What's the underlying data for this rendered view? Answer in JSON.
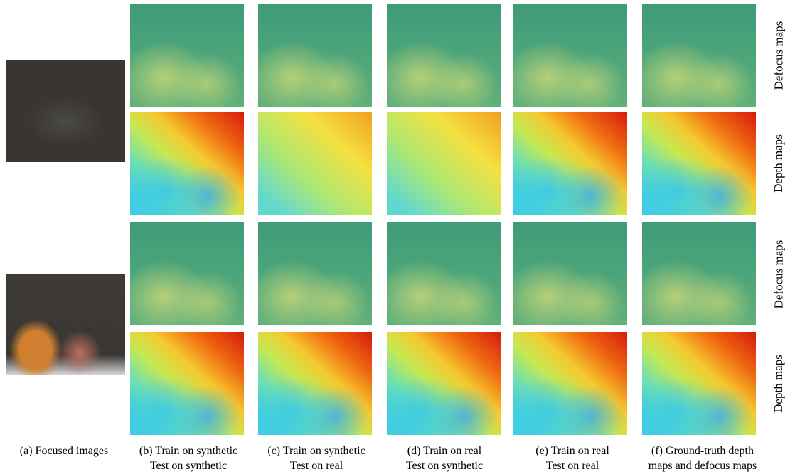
{
  "captions": [
    [
      "(a) Focused images"
    ],
    [
      "(b) Train on synthetic",
      "Test on synthetic"
    ],
    [
      "(c) Train on synthetic",
      "Test on real"
    ],
    [
      "(d) Train on real",
      "Test on synthetic"
    ],
    [
      "(e) Train on real",
      "Test on real"
    ],
    [
      "(f) Ground-truth depth",
      "maps and defocus maps"
    ]
  ],
  "row_labels": [
    "Defocus maps",
    "Depth maps",
    "Defocus maps",
    "Depth maps"
  ]
}
